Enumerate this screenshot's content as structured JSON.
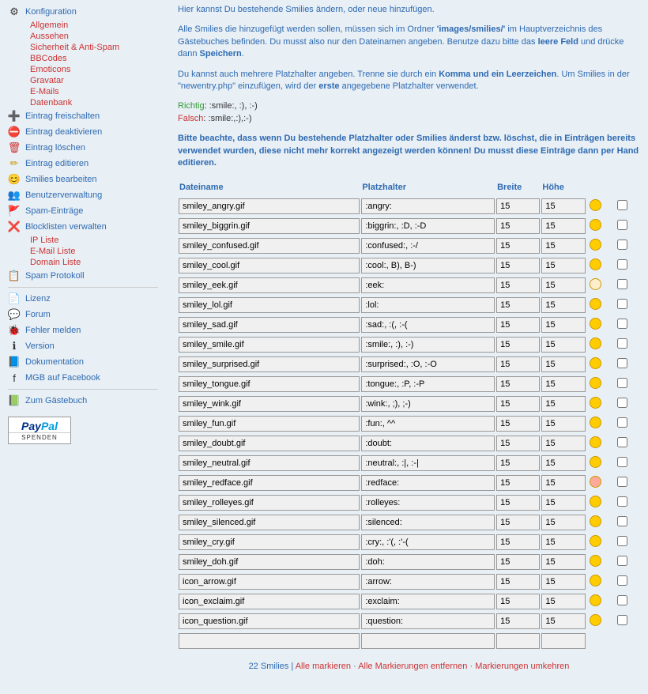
{
  "sidebar": {
    "konfig_label": "Konfiguration",
    "konfig_sub": [
      "Allgemein",
      "Aussehen",
      "Sicherheit & Anti-Spam",
      "BBCodes",
      "Emoticons",
      "Gravatar",
      "E-Mails",
      "Datenbank"
    ],
    "items1": [
      {
        "icon": "➕",
        "label": "Eintrag freischalten",
        "color": "#3a3"
      },
      {
        "icon": "⛔",
        "label": "Eintrag deaktivieren",
        "color": "#c33"
      },
      {
        "icon": "🗑",
        "label": "Eintrag löschen",
        "color": "#c33"
      },
      {
        "icon": "✏",
        "label": "Eintrag editieren",
        "color": "#c90"
      },
      {
        "icon": "😊",
        "label": "Smilies bearbeiten",
        "color": "#fc0"
      },
      {
        "icon": "👥",
        "label": "Benutzerverwaltung",
        "color": "#c33"
      },
      {
        "icon": "🚩",
        "label": "Spam-Einträge",
        "color": "#c33"
      },
      {
        "icon": "❌",
        "label": "Blocklisten verwalten",
        "color": "#c33"
      }
    ],
    "block_sub": [
      "IP Liste",
      "E-Mail Liste",
      "Domain Liste"
    ],
    "spam_protokoll": {
      "icon": "📋",
      "label": "Spam Protokoll"
    },
    "items2": [
      {
        "icon": "📄",
        "label": "Lizenz"
      },
      {
        "icon": "💬",
        "label": "Forum"
      },
      {
        "icon": "🐞",
        "label": "Fehler melden"
      },
      {
        "icon": "ℹ",
        "label": "Version"
      },
      {
        "icon": "📘",
        "label": "Dokumentation"
      },
      {
        "icon": "f",
        "label": "MGB auf Facebook"
      }
    ],
    "gb": {
      "icon": "📗",
      "label": "Zum Gästebuch"
    },
    "paypal": "SPENDEN"
  },
  "text": {
    "p1": "Hier kannst Du bestehende Smilies ändern, oder neue hinzufügen.",
    "p2a": "Alle Smilies die hinzugefügt werden sollen, müssen sich im Ordner ",
    "p2b": "'images/smilies/'",
    "p2c": " im Hauptverzeichnis des Gästebuches befinden. Du musst also nur den Dateinamen angeben. Benutze dazu bitte das ",
    "p2d": "leere Feld",
    "p2e": " und drücke dann ",
    "p2f": "Speichern",
    "p3a": "Du kannst auch mehrere Platzhalter angeben. Trenne sie durch ein ",
    "p3b": "Komma und ein Leerzeichen",
    "p3c": ". Um Smilies in der \"newentry.php\" einzufügen, wird der ",
    "p3d": "erste",
    "p3e": " angegebene Platzhalter verwendet.",
    "richtig_l": "Richtig",
    "richtig_v": ": :smile:, :), :-)",
    "falsch_l": "Falsch",
    "falsch_v": ": :smile:,:),:-)",
    "p4": "Bitte beachte, dass wenn Du bestehende Platzhalter oder Smilies änderst bzw. löschst, die in Einträgen bereits verwendet wurden, diese nicht mehr korrekt angezeigt werden können! Du musst diese Einträge dann per Hand editieren."
  },
  "headers": {
    "file": "Dateiname",
    "ph": "Platzhalter",
    "w": "Breite",
    "h": "Höhe"
  },
  "rows": [
    {
      "file": "smiley_angry.gif",
      "ph": ":angry:",
      "w": "15",
      "h": "15",
      "c": "#ffcc00"
    },
    {
      "file": "smiley_biggrin.gif",
      "ph": ":biggrin:, :D, :-D",
      "w": "15",
      "h": "15",
      "c": "#ffcc00"
    },
    {
      "file": "smiley_confused.gif",
      "ph": ":confused:, :-/",
      "w": "15",
      "h": "15",
      "c": "#ffcc00"
    },
    {
      "file": "smiley_cool.gif",
      "ph": ":cool:, B), B-)",
      "w": "15",
      "h": "15",
      "c": "#ffcc00"
    },
    {
      "file": "smiley_eek.gif",
      "ph": ":eek:",
      "w": "15",
      "h": "15",
      "c": "#ffeecc"
    },
    {
      "file": "smiley_lol.gif",
      "ph": ":lol:",
      "w": "15",
      "h": "15",
      "c": "#ffcc00"
    },
    {
      "file": "smiley_sad.gif",
      "ph": ":sad:, :(, :-(",
      "w": "15",
      "h": "15",
      "c": "#ffcc00"
    },
    {
      "file": "smiley_smile.gif",
      "ph": ":smile:, :), :-)",
      "w": "15",
      "h": "15",
      "c": "#ffcc00"
    },
    {
      "file": "smiley_surprised.gif",
      "ph": ":surprised:, :O, :-O",
      "w": "15",
      "h": "15",
      "c": "#ffcc00"
    },
    {
      "file": "smiley_tongue.gif",
      "ph": ":tongue:, :P, :-P",
      "w": "15",
      "h": "15",
      "c": "#ffcc00"
    },
    {
      "file": "smiley_wink.gif",
      "ph": ":wink:, ;), ;-)",
      "w": "15",
      "h": "15",
      "c": "#ffcc00"
    },
    {
      "file": "smiley_fun.gif",
      "ph": ":fun:, ^^",
      "w": "15",
      "h": "15",
      "c": "#ffcc00"
    },
    {
      "file": "smiley_doubt.gif",
      "ph": ":doubt:",
      "w": "15",
      "h": "15",
      "c": "#ffcc00"
    },
    {
      "file": "smiley_neutral.gif",
      "ph": ":neutral:, :|, :-|",
      "w": "15",
      "h": "15",
      "c": "#ffcc00"
    },
    {
      "file": "smiley_redface.gif",
      "ph": ":redface:",
      "w": "15",
      "h": "15",
      "c": "#ffaa99"
    },
    {
      "file": "smiley_rolleyes.gif",
      "ph": ":rolleyes:",
      "w": "15",
      "h": "15",
      "c": "#ffcc00"
    },
    {
      "file": "smiley_silenced.gif",
      "ph": ":silenced:",
      "w": "15",
      "h": "15",
      "c": "#ffcc00"
    },
    {
      "file": "smiley_cry.gif",
      "ph": ":cry:, :'(, :'-(",
      "w": "15",
      "h": "15",
      "c": "#ffcc00"
    },
    {
      "file": "smiley_doh.gif",
      "ph": ":doh:",
      "w": "15",
      "h": "15",
      "c": "#ffcc00"
    },
    {
      "file": "icon_arrow.gif",
      "ph": ":arrow:",
      "w": "15",
      "h": "15",
      "c": "#ffcc00"
    },
    {
      "file": "icon_exclaim.gif",
      "ph": ":exclaim:",
      "w": "15",
      "h": "15",
      "c": "#ffcc00"
    },
    {
      "file": "icon_question.gif",
      "ph": ":question:",
      "w": "15",
      "h": "15",
      "c": "#ffcc00"
    }
  ],
  "footer": {
    "count": "22 Smilies",
    "a1": "Alle markieren",
    "a2": "Alle Markierungen entfernen",
    "a3": "Markierungen umkehren"
  }
}
